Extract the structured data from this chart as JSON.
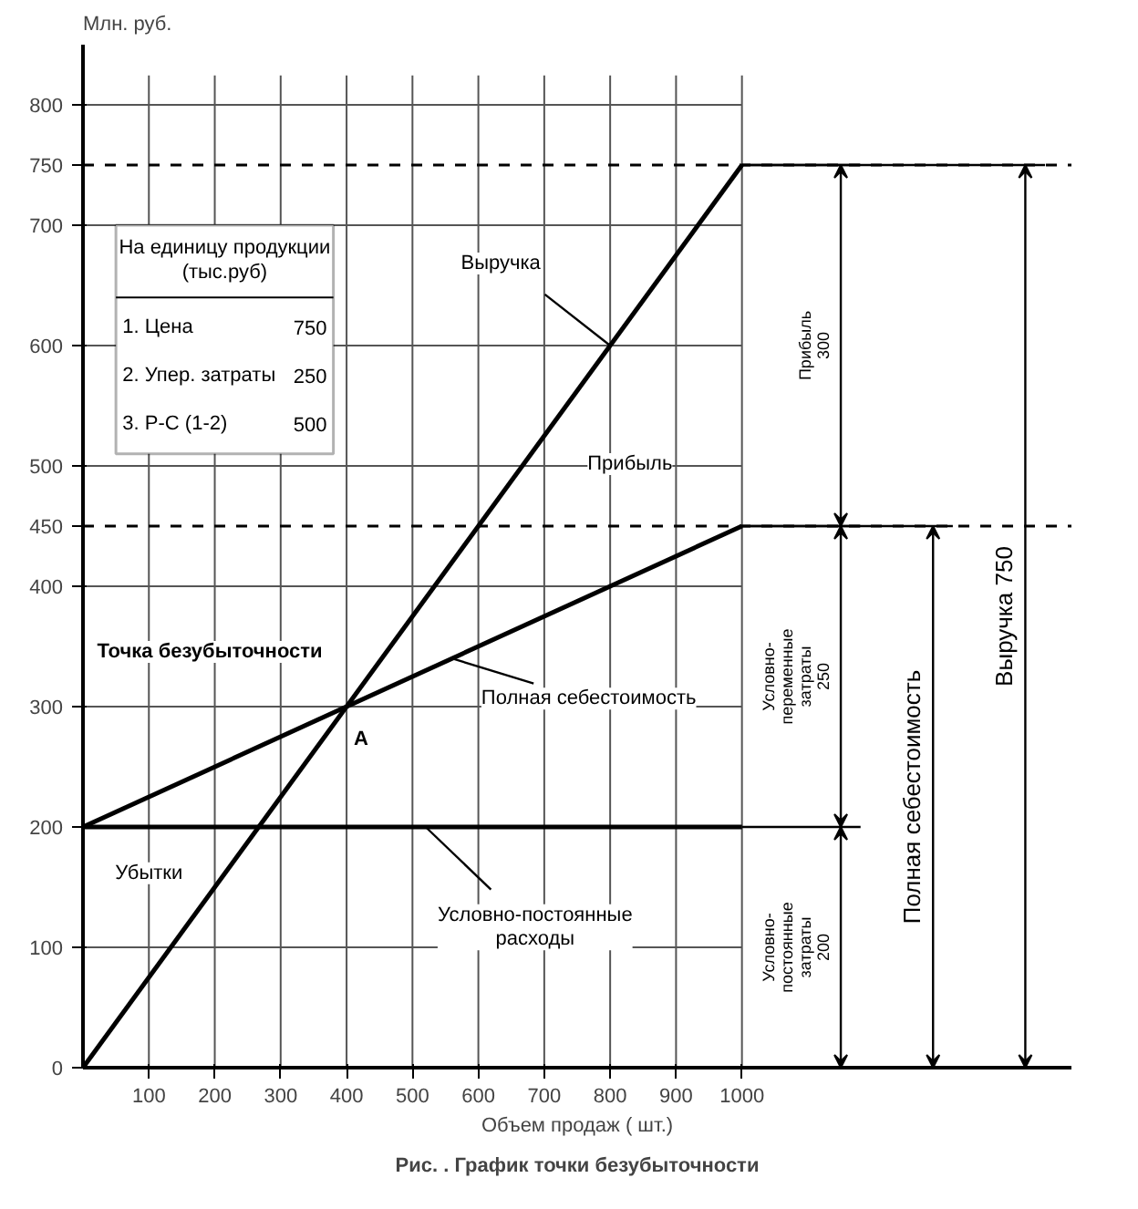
{
  "chart_data": {
    "type": "line",
    "title": "Рис. . График точки безубыточности",
    "xlabel": "Объем продаж ( шт.)",
    "ylabel": "Млн. руб.",
    "x": [
      0,
      1000
    ],
    "series": [
      {
        "color": "#000000",
        "values": [
          0,
          750
        ]
      },
      {
        "color": "#000000",
        "values": [
          200,
          450
        ]
      },
      {
        "color": "#000000",
        "values": [
          200,
          200
        ]
      }
    ],
    "xlim": [
      0,
      1000
    ],
    "ylim": [
      0,
      850
    ],
    "xticks": [
      100,
      200,
      300,
      400,
      500,
      600,
      700,
      800,
      900,
      1000
    ],
    "yticks": [
      0,
      100,
      200,
      300,
      400,
      450,
      500,
      600,
      700,
      750,
      800
    ],
    "grid": true,
    "line_style": "solid",
    "ref_lines": [
      {
        "axis": "y",
        "value": 750,
        "line_style": "dashed"
      },
      {
        "axis": "y",
        "value": 450,
        "line_style": "dashed"
      }
    ],
    "annotations": [
      {
        "text": "Выручка",
        "x": 800,
        "y": 600
      },
      {
        "text": "Точка безубыточности",
        "x": 400,
        "y": 300
      },
      {
        "text": "A",
        "x": 400,
        "y": 300
      },
      {
        "text": "Полная себестоимость",
        "x": 560,
        "y": 340
      },
      {
        "text": "Условно-постоянные\nрасходы",
        "x": 520,
        "y": 200
      },
      "Прибыль",
      "Убытки",
      "На единицу продукции\n(тыс.руб)",
      "1. Цена",
      "750",
      "2. Упер. затраты",
      "250",
      "3. Р-С (1-2)",
      "500",
      "Прибыль\n300",
      "Условно-\nпеременные\nзатраты\n250",
      "Условно-\nпостоянные\nзатраты\n200",
      "Полная себестоимость",
      "Выручка 750"
    ]
  }
}
